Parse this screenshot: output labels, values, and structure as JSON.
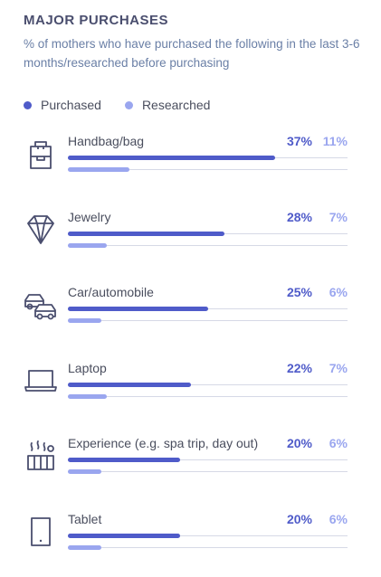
{
  "title": "MAJOR PURCHASES",
  "subtitle": "% of mothers who have purchased the following in the last 3-6 months/researched before purchasing",
  "legend": [
    {
      "label": "Purchased",
      "color": "#4f5bc9"
    },
    {
      "label": "Researched",
      "color": "#9aa6ef"
    }
  ],
  "chart_data": {
    "type": "bar",
    "title": "MAJOR PURCHASES",
    "subtitle": "% of mothers who have purchased the following in the last 3-6 months/researched before purchasing",
    "xlim": [
      0,
      50
    ],
    "legend_position": "top-left",
    "categories": [
      "Handbag/bag",
      "Jewelry",
      "Car/automobile",
      "Laptop",
      "Experience (e.g. spa trip, day out)",
      "Tablet"
    ],
    "icons": [
      "handbag-icon",
      "diamond-icon",
      "cars-icon",
      "laptop-icon",
      "spa-experience-icon",
      "tablet-icon"
    ],
    "series": [
      {
        "name": "Purchased",
        "color": "#4f5bc9",
        "values": [
          37,
          28,
          25,
          22,
          20,
          20
        ],
        "labels": [
          "37%",
          "28%",
          "25%",
          "22%",
          "20%",
          "20%"
        ]
      },
      {
        "name": "Researched",
        "color": "#9aa6ef",
        "values": [
          11,
          7,
          6,
          7,
          6,
          6
        ],
        "labels": [
          "11%",
          "7%",
          "6%",
          "7%",
          "6%",
          "6%"
        ]
      }
    ]
  }
}
